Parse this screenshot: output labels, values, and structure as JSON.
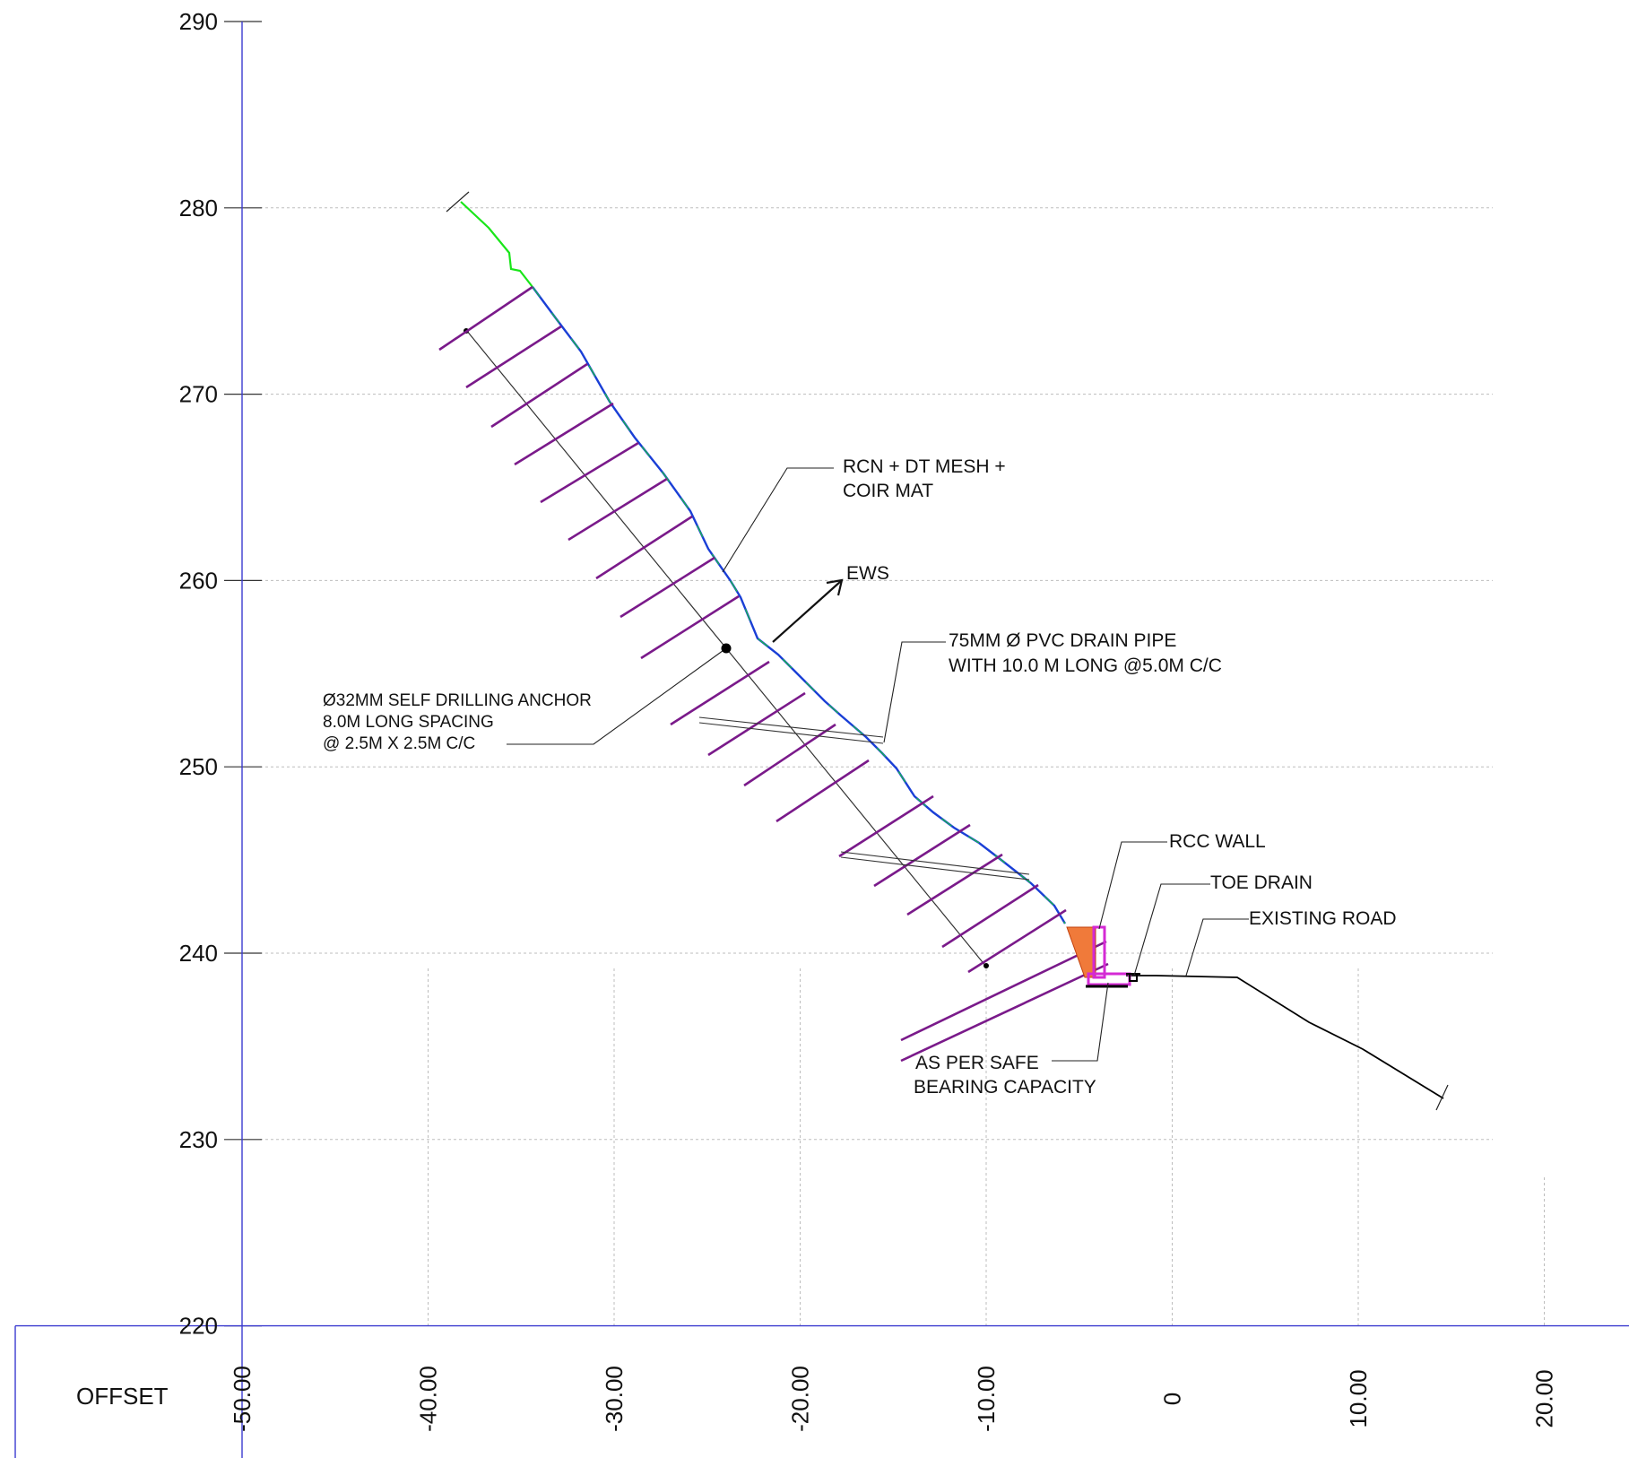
{
  "axes": {
    "y_ticks": [
      "290",
      "280",
      "270",
      "260",
      "250",
      "240",
      "230",
      "220"
    ],
    "x_ticks": [
      "-50.00",
      "-40.00",
      "-30.00",
      "-20.00",
      "-10.00",
      "0",
      "10.00",
      "20.00"
    ],
    "x_row_label": "OFFSET",
    "axis_color": "#3b3bd0"
  },
  "profile": {
    "natural_ground_color": "#19e619",
    "finished_slope_color": "#1a3fd6",
    "road_color": "#000000",
    "anchor_color": "#7a1a8a",
    "wall_fill_color": "#f07a3a",
    "footing_color": "#d42ad4"
  },
  "annotations": {
    "rcn_mesh": [
      "RCN + DT MESH +",
      "COIR MAT"
    ],
    "ews": "EWS",
    "drain_pipe": [
      "75MM Ø PVC DRAIN PIPE",
      "WITH 10.0 M LONG @5.0M C/C"
    ],
    "anchor": [
      "Ø32MM SELF DRILLING ANCHOR",
      "8.0M LONG SPACING",
      "@  2.5M X 2.5M C/C"
    ],
    "rcc_wall": "RCC WALL",
    "toe_drain": "TOE DRAIN",
    "existing_road": "EXISTING ROAD",
    "bearing": [
      "AS PER SAFE",
      "BEARING CAPACITY"
    ]
  }
}
